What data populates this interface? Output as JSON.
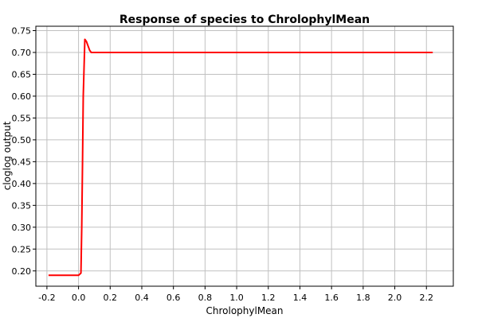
{
  "chart_data": {
    "type": "line",
    "title": "Response of species to ChrolophylMean",
    "xlabel": "ChrolophylMean",
    "ylabel": "cloglog output",
    "xlim": [
      -0.27,
      2.37
    ],
    "ylim": [
      0.165,
      0.76
    ],
    "xticks": [
      -0.2,
      0.0,
      0.2,
      0.4,
      0.6,
      0.8,
      1.0,
      1.2,
      1.4,
      1.6,
      1.8,
      2.0,
      2.2
    ],
    "xtick_labels": [
      "-0.2",
      "0.0",
      "0.2",
      "0.4",
      "0.6",
      "0.8",
      "1.0",
      "1.2",
      "1.4",
      "1.6",
      "1.8",
      "2.0",
      "2.2"
    ],
    "yticks": [
      0.2,
      0.25,
      0.3,
      0.35,
      0.4,
      0.45,
      0.5,
      0.55,
      0.6,
      0.65,
      0.7,
      0.75
    ],
    "ytick_labels": [
      "0.20",
      "0.25",
      "0.30",
      "0.35",
      "0.40",
      "0.45",
      "0.50",
      "0.55",
      "0.60",
      "0.65",
      "0.70",
      "0.75"
    ],
    "grid": true,
    "line_color": "#ff0000",
    "series": [
      {
        "x": [
          -0.19,
          0.0,
          0.015,
          0.02,
          0.025,
          0.03,
          0.04,
          0.05,
          0.06,
          0.07,
          0.08,
          0.5,
          1.0,
          1.5,
          2.0,
          2.24
        ],
        "y": [
          0.19,
          0.19,
          0.195,
          0.3,
          0.45,
          0.6,
          0.73,
          0.725,
          0.715,
          0.705,
          0.7,
          0.7,
          0.7,
          0.7,
          0.7,
          0.7
        ]
      }
    ]
  }
}
